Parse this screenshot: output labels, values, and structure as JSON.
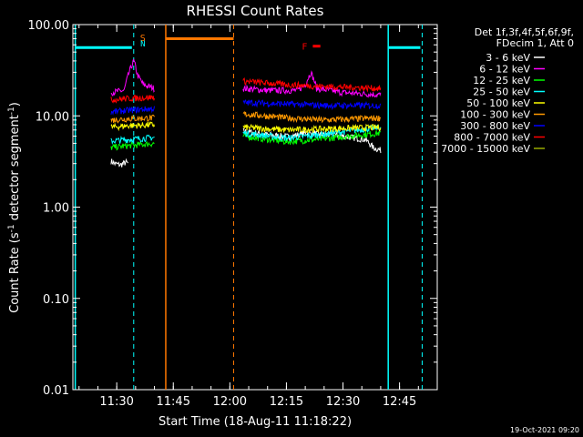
{
  "chart_data": {
    "type": "line",
    "title": "RHESSI Count Rates",
    "xlabel": "Start Time (18-Aug-11 11:18:22)",
    "ylabel_main": "Count Rate (s",
    "ylabel_sup1": "-1",
    "ylabel_mid": " detector segment",
    "ylabel_sup2": "-1",
    "ylabel_end": ")",
    "y_scale": "log",
    "ylim": [
      0.01,
      100
    ],
    "xlim": [
      "11:18:22",
      "12:55:00"
    ],
    "x_ticks": [
      "11:30",
      "11:45",
      "12:00",
      "12:15",
      "12:30",
      "12:45"
    ],
    "y_ticks": [
      "0.01",
      "0.10",
      "1.00",
      "10.00",
      "100.00"
    ],
    "legend_header": [
      "Det 1f,3f,4f,5f,6f,9f,",
      "FDecim 1, Att 0"
    ],
    "legend_position": "right",
    "footer_timestamp": "19-Oct-2021 09:20",
    "annotations": {
      "saa": "S",
      "flare": "F",
      "night": "N"
    },
    "series": [
      {
        "name": "3 - 6 keV",
        "color": "#ffffff",
        "segments": [
          {
            "times": [
              "11:28:30",
              "11:29:30",
              "11:31:00",
              "11:32:30",
              "11:33:00"
            ],
            "values": [
              3.2,
              3.0,
              2.9,
              3.1,
              3.0
            ]
          },
          {
            "times": [
              "12:03:30",
              "12:10:00",
              "12:16:00",
              "12:20:00",
              "12:30:00",
              "12:36:00",
              "12:38:00",
              "12:40:00"
            ],
            "values": [
              6.8,
              6.2,
              5.9,
              6.5,
              6.0,
              5.5,
              4.5,
              4.2
            ]
          }
        ]
      },
      {
        "name": "6 - 12 keV",
        "color": "#ff00ff",
        "segments": [
          {
            "times": [
              "11:28:30",
              "11:32:00",
              "11:34:30",
              "11:35:30",
              "11:37:00",
              "11:40:00"
            ],
            "values": [
              18,
              19,
              40,
              28,
              22,
              20
            ]
          },
          {
            "times": [
              "12:03:30",
              "12:10:00",
              "12:18:00",
              "12:20:00",
              "12:21:30",
              "12:23:00",
              "12:30:00",
              "12:40:00"
            ],
            "values": [
              20,
              19,
              19,
              22,
              30,
              20,
              18,
              17
            ]
          }
        ]
      },
      {
        "name": "12 - 25 keV",
        "color": "#00ff00",
        "segments": [
          {
            "times": [
              "11:28:30",
              "11:33:00",
              "11:40:00"
            ],
            "values": [
              4.5,
              4.7,
              5.0
            ]
          },
          {
            "times": [
              "12:03:30",
              "12:15:00",
              "12:25:00",
              "12:40:00"
            ],
            "values": [
              6.0,
              5.2,
              5.6,
              6.5
            ]
          }
        ]
      },
      {
        "name": "25 - 50 keV",
        "color": "#00ffff",
        "segments": [
          {
            "times": [
              "11:28:30",
              "11:33:00",
              "11:40:00"
            ],
            "values": [
              5.3,
              5.5,
              5.8
            ]
          },
          {
            "times": [
              "12:03:30",
              "12:15:00",
              "12:25:00",
              "12:40:00"
            ],
            "values": [
              6.5,
              5.7,
              6.3,
              7.5
            ]
          }
        ]
      },
      {
        "name": "50 - 100 keV",
        "color": "#ffff00",
        "segments": [
          {
            "times": [
              "11:28:30",
              "11:33:00",
              "11:40:00"
            ],
            "values": [
              7.5,
              7.8,
              8.0
            ]
          },
          {
            "times": [
              "12:03:30",
              "12:15:00",
              "12:25:00",
              "12:40:00"
            ],
            "values": [
              7.5,
              7.0,
              7.2,
              7.5
            ]
          }
        ]
      },
      {
        "name": "100 - 300 keV",
        "color": "#ff9900",
        "segments": [
          {
            "times": [
              "11:28:30",
              "11:33:00",
              "11:40:00"
            ],
            "values": [
              9.0,
              9.3,
              9.5
            ]
          },
          {
            "times": [
              "12:03:30",
              "12:15:00",
              "12:25:00",
              "12:40:00"
            ],
            "values": [
              10.5,
              9.5,
              9.0,
              9.5
            ]
          }
        ]
      },
      {
        "name": "300 - 800 keV",
        "color": "#0000ff",
        "segments": [
          {
            "times": [
              "11:28:30",
              "11:33:00",
              "11:40:00"
            ],
            "values": [
              11,
              11.5,
              12
            ]
          },
          {
            "times": [
              "12:03:30",
              "12:15:00",
              "12:25:00",
              "12:40:00"
            ],
            "values": [
              14,
              13.5,
              13,
              13
            ]
          }
        ]
      },
      {
        "name": "800 - 7000 keV",
        "color": "#ff0000",
        "segments": [
          {
            "times": [
              "11:28:30",
              "11:33:00",
              "11:40:00"
            ],
            "values": [
              15,
              15.5,
              16
            ]
          },
          {
            "times": [
              "12:03:30",
              "12:15:00",
              "12:25:00",
              "12:40:00"
            ],
            "values": [
              24,
              22,
              21,
              20
            ]
          }
        ]
      },
      {
        "name": "7000 - 15000 keV",
        "color": "#99aa00",
        "segments": []
      }
    ],
    "markers": {
      "night_intervals": [
        {
          "start": "11:19:00",
          "end": "11:34:30",
          "color": "#00ffff"
        },
        {
          "start": "12:42:00",
          "end": "12:51:00",
          "color": "#00ffff"
        }
      ],
      "saa_interval": {
        "start": "11:43:00",
        "end": "12:01:00",
        "color": "#ff7700"
      },
      "flare_interval": {
        "start": "12:22:00",
        "end": "12:24:00",
        "color": "#ff0000"
      },
      "solid_vlines": [
        {
          "time": "11:19:00",
          "color": "#00ffff"
        },
        {
          "time": "11:43:00",
          "color": "#ff7700"
        },
        {
          "time": "12:42:00",
          "color": "#00ffff"
        }
      ],
      "dashed_vlines": [
        {
          "time": "11:34:30",
          "color": "#00ffff"
        },
        {
          "time": "12:01:00",
          "color": "#ff7700"
        },
        {
          "time": "12:51:00",
          "color": "#00ffff"
        }
      ]
    }
  }
}
